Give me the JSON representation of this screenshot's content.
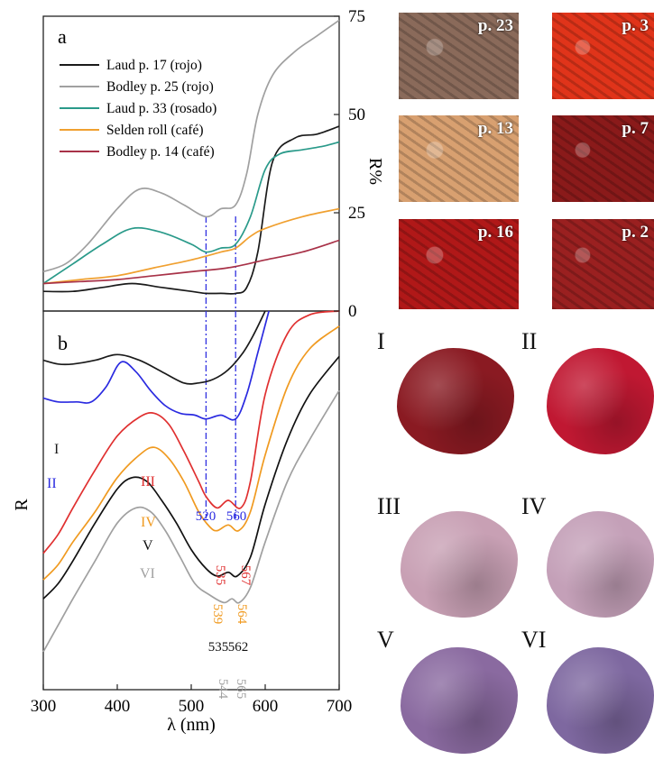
{
  "chart_data": [
    {
      "panel": "a",
      "type": "line",
      "xlabel": "",
      "ylabel": "R%",
      "xlim": [
        300,
        700
      ],
      "ylim": [
        0,
        75
      ],
      "y_ticks": [
        "0",
        "25",
        "50",
        "75"
      ],
      "legend_position": "top-left",
      "series": [
        {
          "name": "Laud p. 17 (rojo)",
          "color": "#1a1a1a",
          "x": [
            300,
            340,
            380,
            420,
            460,
            500,
            520,
            540,
            560,
            575,
            590,
            610,
            640,
            670,
            700
          ],
          "y": [
            5,
            5,
            6,
            7,
            6,
            5,
            4.5,
            4.5,
            4.5,
            6,
            15,
            38,
            44,
            45,
            47
          ]
        },
        {
          "name": "Bodley p. 25 (rojo)",
          "color": "#a0a0a0",
          "x": [
            300,
            330,
            360,
            400,
            430,
            460,
            490,
            520,
            540,
            560,
            575,
            590,
            610,
            640,
            670,
            700
          ],
          "y": [
            10,
            12,
            17,
            26,
            31,
            30,
            27,
            24,
            26,
            27,
            35,
            50,
            60,
            66,
            70,
            74
          ]
        },
        {
          "name": "Laud p. 33 (rosado)",
          "color": "#2a9a8a",
          "x": [
            300,
            340,
            380,
            420,
            460,
            500,
            520,
            540,
            560,
            580,
            600,
            620,
            650,
            680,
            700
          ],
          "y": [
            7,
            12,
            17,
            21,
            20,
            17,
            15,
            16,
            17,
            24,
            36,
            40,
            41,
            42,
            43
          ]
        },
        {
          "name": "Selden roll (café)",
          "color": "#f0a030",
          "x": [
            300,
            350,
            400,
            450,
            500,
            540,
            560,
            580,
            600,
            650,
            700
          ],
          "y": [
            7,
            8,
            9,
            11,
            13,
            15,
            16,
            19,
            21,
            24,
            26
          ]
        },
        {
          "name": "Bodley p. 14 (café)",
          "color": "#a83248",
          "x": [
            300,
            350,
            400,
            450,
            500,
            550,
            600,
            650,
            700
          ],
          "y": [
            7,
            7.5,
            8,
            9,
            10,
            11,
            13,
            15,
            18
          ]
        }
      ]
    },
    {
      "panel": "b",
      "type": "line",
      "xlabel": "λ (nm)",
      "ylabel": "R",
      "xlim": [
        300,
        700
      ],
      "x_ticks": [
        "300",
        "400",
        "500",
        "600",
        "700"
      ],
      "series": [
        {
          "name": "I",
          "color": "#1a1a1a",
          "x": [
            300,
            320,
            340,
            370,
            400,
            430,
            460,
            490,
            510,
            530,
            550,
            570,
            585,
            600
          ],
          "y": [
            0.87,
            0.86,
            0.86,
            0.87,
            0.885,
            0.87,
            0.84,
            0.81,
            0.81,
            0.82,
            0.845,
            0.89,
            0.94,
            1.0
          ]
        },
        {
          "name": "II",
          "color": "#2a2ae0",
          "x": [
            300,
            320,
            345,
            365,
            385,
            405,
            425,
            445,
            465,
            485,
            505,
            520,
            540,
            560,
            575,
            590,
            605
          ],
          "y": [
            0.77,
            0.76,
            0.76,
            0.76,
            0.8,
            0.865,
            0.84,
            0.79,
            0.75,
            0.73,
            0.725,
            0.715,
            0.725,
            0.715,
            0.78,
            0.89,
            1.0
          ]
        },
        {
          "name": "III",
          "color": "#e03030",
          "x": [
            300,
            320,
            340,
            370,
            400,
            430,
            450,
            470,
            490,
            510,
            520,
            535,
            550,
            567,
            580,
            600,
            630,
            660,
            700
          ],
          "y": [
            0.36,
            0.41,
            0.48,
            0.58,
            0.67,
            0.72,
            0.73,
            0.7,
            0.63,
            0.55,
            0.51,
            0.48,
            0.5,
            0.48,
            0.55,
            0.78,
            0.94,
            0.99,
            1.0
          ]
        },
        {
          "name": "IV",
          "color": "#f09a20",
          "x": [
            300,
            320,
            340,
            370,
            400,
            430,
            450,
            470,
            490,
            510,
            525,
            535,
            550,
            564,
            580,
            600,
            630,
            660,
            700
          ],
          "y": [
            0.29,
            0.33,
            0.39,
            0.47,
            0.56,
            0.62,
            0.64,
            0.61,
            0.55,
            0.47,
            0.43,
            0.42,
            0.435,
            0.42,
            0.47,
            0.62,
            0.8,
            0.9,
            0.96
          ]
        },
        {
          "name": "V",
          "color": "#111111",
          "x": [
            300,
            320,
            340,
            370,
            400,
            420,
            440,
            460,
            480,
            500,
            520,
            535,
            550,
            562,
            580,
            600,
            630,
            660,
            700
          ],
          "y": [
            0.24,
            0.28,
            0.34,
            0.44,
            0.53,
            0.56,
            0.55,
            0.5,
            0.44,
            0.37,
            0.32,
            0.3,
            0.31,
            0.3,
            0.35,
            0.49,
            0.66,
            0.78,
            0.88
          ]
        },
        {
          "name": "VI",
          "color": "#a0a0a0",
          "x": [
            300,
            320,
            340,
            370,
            400,
            425,
            445,
            465,
            485,
            505,
            525,
            544,
            555,
            565,
            580,
            600,
            630,
            660,
            700
          ],
          "y": [
            0.1,
            0.17,
            0.24,
            0.34,
            0.44,
            0.48,
            0.47,
            0.42,
            0.35,
            0.28,
            0.25,
            0.23,
            0.24,
            0.23,
            0.27,
            0.39,
            0.55,
            0.66,
            0.79
          ]
        }
      ],
      "annotations": [
        {
          "text": "520",
          "color": "#2a2ae0"
        },
        {
          "text": "560",
          "color": "#2a2ae0"
        },
        {
          "text": "535",
          "color": "#e03030"
        },
        {
          "text": "567",
          "color": "#e03030"
        },
        {
          "text": "539",
          "color": "#f09a20"
        },
        {
          "text": "564",
          "color": "#f09a20"
        },
        {
          "text": "535",
          "color": "#111111"
        },
        {
          "text": "562",
          "color": "#111111"
        },
        {
          "text": "544",
          "color": "#a0a0a0"
        },
        {
          "text": "565",
          "color": "#a0a0a0"
        }
      ],
      "reference_lines_nm": [
        520,
        560
      ],
      "reference_line_color": "#3030e0"
    }
  ],
  "panel_letters": {
    "a": "a",
    "b": "b"
  },
  "photos": [
    {
      "label": "p. 23",
      "color": "#8a6a5a"
    },
    {
      "label": "p. 3",
      "color": "#e0341a"
    },
    {
      "label": "p. 13",
      "color": "#d8a070"
    },
    {
      "label": "p. 7",
      "color": "#8a1a1a"
    },
    {
      "label": "p. 16",
      "color": "#b01818"
    },
    {
      "label": "p. 2",
      "color": "#9a2020"
    }
  ],
  "pigments": [
    {
      "label": "I",
      "color": "#8a1a22"
    },
    {
      "label": "II",
      "color": "#c01832"
    },
    {
      "label": "III",
      "color": "#c8a0b4"
    },
    {
      "label": "IV",
      "color": "#c4a0b8"
    },
    {
      "label": "V",
      "color": "#8a6aa0"
    },
    {
      "label": "VI",
      "color": "#7e68a0"
    }
  ]
}
